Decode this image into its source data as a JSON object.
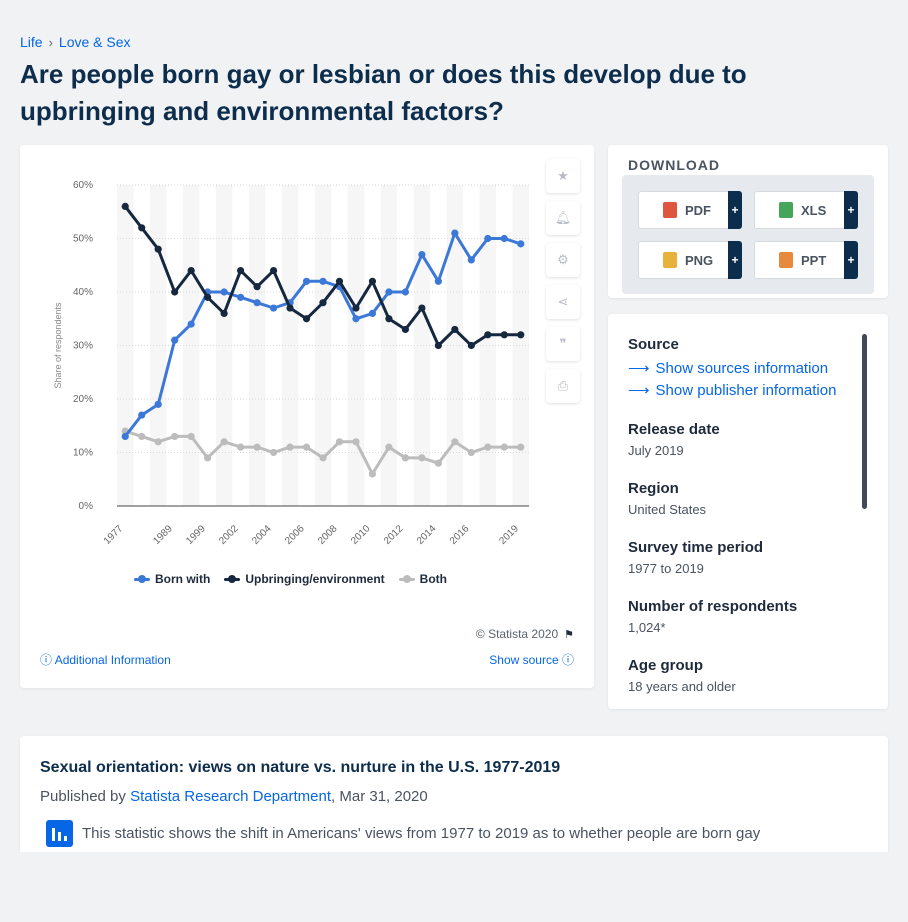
{
  "breadcrumb": {
    "items": [
      "Life",
      "Love & Sex"
    ],
    "separator": "›"
  },
  "page_title": "Are people born gay or lesbian or does this develop due to upbringing and environmental factors?",
  "chart": {
    "copyright": "© Statista 2020",
    "additional_info": "Additional Information",
    "show_source": "Show source"
  },
  "chart_data": {
    "type": "line",
    "title": "",
    "xlabel": "",
    "ylabel": "Share of respondents",
    "ylim": [
      0,
      60
    ],
    "yticks": [
      "0%",
      "10%",
      "20%",
      "30%",
      "40%",
      "50%",
      "60%"
    ],
    "x": [
      "1977",
      "1982",
      "1985",
      "1989",
      "1996",
      "1999",
      "2001",
      "2002",
      "2003",
      "2004",
      "2005",
      "2006",
      "2007",
      "2008",
      "2009",
      "2010",
      "2011",
      "2012",
      "2013",
      "2014",
      "2015",
      "2016",
      "2017",
      "2018",
      "2019"
    ],
    "x_tick_labels": [
      "1977",
      "1989",
      "1999",
      "2002",
      "2004",
      "2006",
      "2008",
      "2010",
      "2012",
      "2014",
      "2016",
      "2019"
    ],
    "grid": true,
    "legend_position": "bottom",
    "series": [
      {
        "name": "Born with",
        "color": "#3b78d8",
        "values": [
          13,
          17,
          19,
          31,
          34,
          40,
          40,
          39,
          38,
          37,
          38,
          42,
          42,
          41,
          35,
          36,
          40,
          40,
          47,
          42,
          51,
          46,
          50,
          50,
          49
        ]
      },
      {
        "name": "Upbringing/environment",
        "color": "#16283f",
        "values": [
          56,
          52,
          48,
          40,
          44,
          39,
          36,
          44,
          41,
          44,
          37,
          35,
          38,
          42,
          37,
          42,
          35,
          33,
          37,
          30,
          33,
          30,
          32,
          32,
          32
        ]
      },
      {
        "name": "Both",
        "color": "#bcbcbc",
        "values": [
          14,
          13,
          12,
          13,
          13,
          9,
          12,
          11,
          11,
          10,
          11,
          11,
          9,
          12,
          12,
          6,
          11,
          9,
          9,
          8,
          12,
          10,
          11,
          11,
          11
        ]
      }
    ]
  },
  "download": {
    "title": "DOWNLOAD",
    "buttons": [
      {
        "label": "PDF",
        "color": "#e0553e"
      },
      {
        "label": "XLS",
        "color": "#47a55b"
      },
      {
        "label": "PNG",
        "color": "#e8b13c"
      },
      {
        "label": "PPT",
        "color": "#e88a3c"
      }
    ],
    "plus": "+"
  },
  "meta": {
    "source_head": "Source",
    "show_sources": "Show sources information",
    "show_publisher": "Show publisher information",
    "release_head": "Release date",
    "release_val": "July 2019",
    "region_head": "Region",
    "region_val": "United States",
    "survey_head": "Survey time period",
    "survey_val": "1977 to 2019",
    "respondents_head": "Number of respondents",
    "respondents_val": "1,024*",
    "age_head": "Age group",
    "age_val": "18 years and older"
  },
  "info": {
    "title": "Sexual orientation: views on nature vs. nurture in the U.S. 1977-2019",
    "published_by": "Published by",
    "publisher": "Statista Research Department",
    "date": ", Mar 31, 2020",
    "description": "This statistic shows the shift in Americans' views from 1977 to 2019 as to whether people are born gay"
  }
}
